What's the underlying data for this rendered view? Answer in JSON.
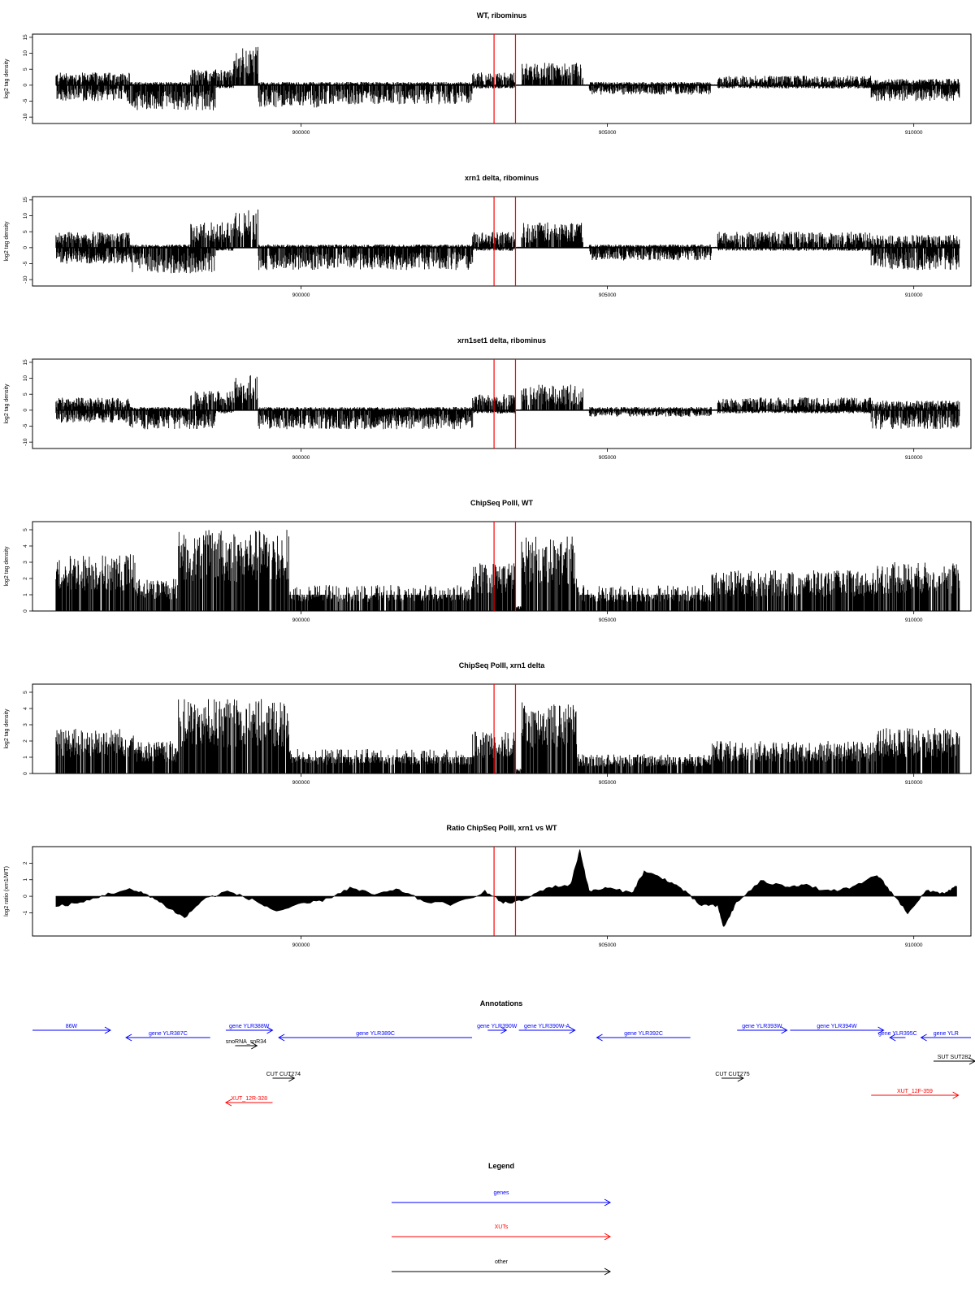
{
  "figure": {
    "panels": [
      {
        "title": "WT, ribominus",
        "ylabel": "log2 tag density",
        "yticks": [
          "15",
          "10",
          "5",
          "0",
          "-5",
          "-10"
        ],
        "yvalues": [
          15,
          10,
          5,
          0,
          -5,
          -10
        ]
      },
      {
        "title": "xrn1 delta, ribominus",
        "ylabel": "log2 tag density",
        "yticks": [
          "15",
          "10",
          "5",
          "0",
          "-5",
          "-10"
        ],
        "yvalues": [
          15,
          10,
          5,
          0,
          -5,
          -10
        ]
      },
      {
        "title": "xrn1set1 delta, ribominus",
        "ylabel": "log2 tag density",
        "yticks": [
          "15",
          "10",
          "5",
          "0",
          "-5",
          "-10"
        ],
        "yvalues": [
          15,
          10,
          5,
          0,
          -5,
          -10
        ]
      },
      {
        "title": "ChipSeq PolII, WT",
        "ylabel": "log2 tag density",
        "yticks": [
          "5",
          "4",
          "3",
          "2",
          "1",
          "0"
        ],
        "yvalues": [
          5,
          4,
          3,
          2,
          1,
          0
        ]
      },
      {
        "title": "ChipSeq PolII, xrn1 delta",
        "ylabel": "log2 tag density",
        "yticks": [
          "5",
          "4",
          "3",
          "2",
          "1",
          "0"
        ],
        "yvalues": [
          5,
          4,
          3,
          2,
          1,
          0
        ]
      },
      {
        "title": "Ratio ChipSeq PolII, xrn1 vs WT",
        "ylabel": "log2 ratio (xrn1/WT)",
        "yticks": [
          "2",
          "1",
          "0",
          "-1"
        ],
        "yvalues": [
          2,
          1,
          0,
          -1
        ]
      }
    ],
    "xticks": [
      "900000",
      "905000",
      "910000"
    ],
    "annotations_title": "Annotations",
    "legend_title": "Legend",
    "colors": {
      "gene": "#0000ff",
      "xut": "#ff0000",
      "other": "#000000",
      "marker": "#ff0000",
      "signal": "#000000"
    }
  },
  "chart_data": [
    {
      "type": "bar",
      "title": "WT, ribominus",
      "ylabel": "log2 tag density",
      "ylim": [
        -12,
        16
      ],
      "xlim": [
        895750,
        910800
      ],
      "x_ticks": [
        900000,
        905000,
        910000
      ],
      "marker_lines": [
        903150,
        903500
      ],
      "segments_approx": [
        {
          "x": [
            896000,
            897200
          ],
          "pos": 4,
          "neg": -5
        },
        {
          "x": [
            897200,
            898600
          ],
          "pos": 1,
          "neg": -8
        },
        {
          "x": [
            898200,
            898900
          ],
          "pos": 5,
          "neg": -1
        },
        {
          "x": [
            898900,
            899300
          ],
          "pos": 12,
          "neg": 0
        },
        {
          "x": [
            899300,
            900300
          ],
          "pos": 1,
          "neg": -7
        },
        {
          "x": [
            900300,
            902800
          ],
          "pos": 1,
          "neg": -6
        },
        {
          "x": [
            902800,
            903500
          ],
          "pos": 4,
          "neg": -1
        },
        {
          "x": [
            903600,
            904600
          ],
          "pos": 7,
          "neg": 0
        },
        {
          "x": [
            904700,
            906700
          ],
          "pos": 1,
          "neg": -3
        },
        {
          "x": [
            906800,
            909300
          ],
          "pos": 3,
          "neg": -1
        },
        {
          "x": [
            909300,
            910800
          ],
          "pos": 2,
          "neg": -5
        }
      ]
    },
    {
      "type": "bar",
      "title": "xrn1 delta, ribominus",
      "ylabel": "log2 tag density",
      "ylim": [
        -12,
        16
      ],
      "xlim": [
        895750,
        910800
      ],
      "x_ticks": [
        900000,
        905000,
        910000
      ],
      "marker_lines": [
        903150,
        903500
      ],
      "segments_approx": [
        {
          "x": [
            896000,
            897200
          ],
          "pos": 5,
          "neg": -5
        },
        {
          "x": [
            897200,
            898600
          ],
          "pos": 1,
          "neg": -8
        },
        {
          "x": [
            898200,
            898900
          ],
          "pos": 8,
          "neg": -1
        },
        {
          "x": [
            898900,
            899300
          ],
          "pos": 12,
          "neg": 0
        },
        {
          "x": [
            899300,
            902800
          ],
          "pos": 1,
          "neg": -7
        },
        {
          "x": [
            902800,
            903500
          ],
          "pos": 5,
          "neg": -1
        },
        {
          "x": [
            903600,
            904600
          ],
          "pos": 8,
          "neg": 0
        },
        {
          "x": [
            904700,
            906700
          ],
          "pos": 1,
          "neg": -4
        },
        {
          "x": [
            906800,
            909300
          ],
          "pos": 5,
          "neg": -1
        },
        {
          "x": [
            909300,
            910800
          ],
          "pos": 4,
          "neg": -7
        }
      ]
    },
    {
      "type": "bar",
      "title": "xrn1set1 delta, ribominus",
      "ylabel": "log2 tag density",
      "ylim": [
        -12,
        16
      ],
      "xlim": [
        895750,
        910800
      ],
      "x_ticks": [
        900000,
        905000,
        910000
      ],
      "marker_lines": [
        903150,
        903500
      ],
      "segments_approx": [
        {
          "x": [
            896000,
            897200
          ],
          "pos": 4,
          "neg": -4
        },
        {
          "x": [
            897200,
            898600
          ],
          "pos": 1,
          "neg": -6
        },
        {
          "x": [
            898200,
            898900
          ],
          "pos": 6,
          "neg": -1
        },
        {
          "x": [
            898900,
            899300
          ],
          "pos": 11,
          "neg": 0
        },
        {
          "x": [
            899300,
            902800
          ],
          "pos": 1,
          "neg": -6
        },
        {
          "x": [
            902800,
            903500
          ],
          "pos": 5,
          "neg": -1
        },
        {
          "x": [
            903600,
            904600
          ],
          "pos": 8,
          "neg": 0
        },
        {
          "x": [
            904700,
            906700
          ],
          "pos": 1,
          "neg": -2
        },
        {
          "x": [
            906800,
            909300
          ],
          "pos": 4,
          "neg": -1
        },
        {
          "x": [
            909300,
            910800
          ],
          "pos": 3,
          "neg": -6
        }
      ]
    },
    {
      "type": "bar",
      "title": "ChipSeq PolII, WT",
      "ylabel": "log2 tag density",
      "ylim": [
        0,
        5.5
      ],
      "xlim": [
        895750,
        910800
      ],
      "x_ticks": [
        900000,
        905000,
        910000
      ],
      "marker_lines": [
        903150,
        903500
      ],
      "segments_approx": [
        {
          "x": [
            896000,
            897300
          ],
          "pos": 3.5
        },
        {
          "x": [
            897300,
            898000
          ],
          "pos": 2
        },
        {
          "x": [
            898000,
            899800
          ],
          "pos": 5
        },
        {
          "x": [
            899800,
            902800
          ],
          "pos": 1.6
        },
        {
          "x": [
            902800,
            903500
          ],
          "pos": 3
        },
        {
          "x": [
            903600,
            904500
          ],
          "pos": 4.6
        },
        {
          "x": [
            904500,
            906700
          ],
          "pos": 1.6
        },
        {
          "x": [
            906700,
            909400
          ],
          "pos": 2.5
        },
        {
          "x": [
            909400,
            910800
          ],
          "pos": 3
        }
      ]
    },
    {
      "type": "bar",
      "title": "ChipSeq PolII, xrn1 delta",
      "ylabel": "log2 tag density",
      "ylim": [
        0,
        5.5
      ],
      "xlim": [
        895750,
        910800
      ],
      "x_ticks": [
        900000,
        905000,
        910000
      ],
      "marker_lines": [
        903150,
        903500
      ],
      "segments_approx": [
        {
          "x": [
            896000,
            897300
          ],
          "pos": 2.8
        },
        {
          "x": [
            897300,
            898000
          ],
          "pos": 2
        },
        {
          "x": [
            898000,
            899800
          ],
          "pos": 4.6
        },
        {
          "x": [
            899800,
            902800
          ],
          "pos": 1.5
        },
        {
          "x": [
            902800,
            903500
          ],
          "pos": 2.6
        },
        {
          "x": [
            903600,
            904500
          ],
          "pos": 4.4
        },
        {
          "x": [
            904500,
            906700
          ],
          "pos": 1.2
        },
        {
          "x": [
            906700,
            909400
          ],
          "pos": 2
        },
        {
          "x": [
            909400,
            910800
          ],
          "pos": 2.8
        }
      ]
    },
    {
      "type": "area",
      "title": "Ratio ChipSeq PolII, xrn1 vs WT",
      "ylabel": "log2 ratio (xrn1/WT)",
      "ylim": [
        -2.4,
        3
      ],
      "xlim": [
        895750,
        910800
      ],
      "x_ticks": [
        900000,
        905000,
        910000
      ],
      "marker_lines": [
        903150,
        903500
      ],
      "x": [
        896000,
        896400,
        896800,
        897200,
        897500,
        897800,
        898100,
        898400,
        898800,
        899200,
        899600,
        900000,
        900400,
        900800,
        901200,
        901600,
        902000,
        902500,
        903000,
        903300,
        903600,
        904000,
        904400,
        904550,
        904700,
        905000,
        905400,
        905600,
        905900,
        906200,
        906500,
        906800,
        906900,
        907100,
        907500,
        907900,
        908200,
        908600,
        909000,
        909400,
        909600,
        909900,
        910200,
        910500,
        910700
      ],
      "y": [
        -0.6,
        -0.4,
        0.1,
        0.4,
        0.1,
        -0.6,
        -1.3,
        -0.2,
        0.3,
        -0.2,
        -0.9,
        -0.5,
        -0.2,
        0.5,
        0.1,
        0.4,
        -0.3,
        -0.5,
        0.3,
        -0.4,
        -0.3,
        0.5,
        0.7,
        2.8,
        0.3,
        0.5,
        0.2,
        1.5,
        1.1,
        0.5,
        -0.5,
        -0.6,
        -1.9,
        -0.4,
        0.9,
        0.6,
        0.7,
        0.3,
        0.5,
        1.3,
        0.4,
        -1.0,
        0.3,
        0.2,
        0.6
      ]
    }
  ],
  "annotations": {
    "genes": [
      {
        "label": "86W",
        "from": 895750,
        "to": 897000
      },
      {
        "label": "gene YLR387C",
        "from": 898600,
        "to": 897250
      },
      {
        "label": "gene YLR388W",
        "from": 898850,
        "to": 899600
      },
      {
        "label": "gene YLR389C",
        "from": 902800,
        "to": 899700
      },
      {
        "label": "gene YLR390W",
        "from": 903050,
        "to": 903350
      },
      {
        "label": "gene YLR390W-A",
        "from": 903550,
        "to": 904450
      },
      {
        "label": "gene YLR392C",
        "from": 906300,
        "to": 904800
      },
      {
        "label": "gene YLR393W",
        "from": 907050,
        "to": 907850
      },
      {
        "label": "gene YLR394W",
        "from": 907900,
        "to": 909400
      },
      {
        "label": "gene YLR395C",
        "from": 909750,
        "to": 909500
      },
      {
        "label": "gene YLR",
        "from": 910800,
        "to": 910000
      }
    ],
    "xuts": [
      {
        "label": "XUT_12R-328",
        "from": 899600,
        "to": 898850
      },
      {
        "label": "XUT_12F-359",
        "from": 909200,
        "to": 910600
      }
    ],
    "others": [
      {
        "label": "snoRNA_snR34",
        "from": 899000,
        "to": 899350
      },
      {
        "label": "CUT CUT274",
        "from": 899600,
        "to": 899950
      },
      {
        "label": "CUT CUT275",
        "from": 906800,
        "to": 907150
      },
      {
        "label": "SUT SUT282",
        "from": 910200,
        "to": 911000
      }
    ]
  },
  "legend": [
    {
      "label": "genes",
      "kind": "gene"
    },
    {
      "label": "XUTs",
      "kind": "xut"
    },
    {
      "label": "other",
      "kind": "other"
    }
  ]
}
